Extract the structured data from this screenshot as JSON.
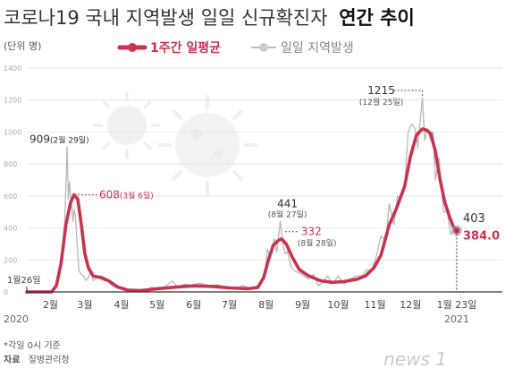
{
  "title": {
    "normal": "코로나19 국내 지역발생 일일 신규확진자",
    "bold": "연간 추이"
  },
  "unit_label": "(단위 명)",
  "legend": {
    "avg": "1주간 일평균",
    "daily": "일일 지역발생"
  },
  "footer": {
    "note": "*각일 0시 기준",
    "source_label": "자료",
    "source": "질병관리청"
  },
  "logo_text": "news 1",
  "colors": {
    "avg": "#c8344f",
    "daily": "#b8b8b8",
    "grid": "#dddddd",
    "axis": "#333333"
  },
  "chart_data": {
    "type": "line",
    "title": "코로나19 국내 지역발생 일일 신규확진자 연간 추이",
    "unit": "명",
    "ylim": [
      0,
      1400
    ],
    "yticks": [
      0,
      200,
      400,
      600,
      800,
      1000,
      1200,
      1400
    ],
    "grid": true,
    "legend_position": "top-center",
    "x_range": [
      "2020-01-26",
      "2021-01-23"
    ],
    "month_ticks": [
      {
        "label": "2월",
        "x": "2020-02-15"
      },
      {
        "label": "3월",
        "x": "2020-03-15"
      },
      {
        "label": "4월",
        "x": "2020-04-15"
      },
      {
        "label": "5월",
        "x": "2020-05-15"
      },
      {
        "label": "6월",
        "x": "2020-06-15"
      },
      {
        "label": "7월",
        "x": "2020-07-15"
      },
      {
        "label": "8월",
        "x": "2020-08-15"
      },
      {
        "label": "9월",
        "x": "2020-09-15"
      },
      {
        "label": "10월",
        "x": "2020-10-15"
      },
      {
        "label": "11월",
        "x": "2020-11-15"
      },
      {
        "label": "12월",
        "x": "2020-12-15"
      },
      {
        "label": "1월 23일",
        "x": "2021-01-23"
      }
    ],
    "year_labels": [
      "2020",
      "2021"
    ],
    "series": [
      {
        "name": "1주간 일평균",
        "points": [
          [
            "2020-01-26",
            0
          ],
          [
            "2020-02-16",
            0
          ],
          [
            "2020-02-20",
            40
          ],
          [
            "2020-02-24",
            180
          ],
          [
            "2020-02-28",
            420
          ],
          [
            "2020-03-03",
            560
          ],
          [
            "2020-03-06",
            608
          ],
          [
            "2020-03-09",
            580
          ],
          [
            "2020-03-12",
            420
          ],
          [
            "2020-03-15",
            240
          ],
          [
            "2020-03-18",
            150
          ],
          [
            "2020-03-22",
            100
          ],
          [
            "2020-03-28",
            90
          ],
          [
            "2020-04-04",
            70
          ],
          [
            "2020-04-12",
            30
          ],
          [
            "2020-04-20",
            12
          ],
          [
            "2020-05-01",
            8
          ],
          [
            "2020-05-15",
            20
          ],
          [
            "2020-05-31",
            30
          ],
          [
            "2020-06-15",
            38
          ],
          [
            "2020-06-30",
            35
          ],
          [
            "2020-07-15",
            25
          ],
          [
            "2020-07-31",
            20
          ],
          [
            "2020-08-08",
            28
          ],
          [
            "2020-08-13",
            90
          ],
          [
            "2020-08-17",
            200
          ],
          [
            "2020-08-21",
            290
          ],
          [
            "2020-08-25",
            320
          ],
          [
            "2020-08-28",
            332
          ],
          [
            "2020-09-01",
            300
          ],
          [
            "2020-09-06",
            220
          ],
          [
            "2020-09-12",
            140
          ],
          [
            "2020-09-20",
            100
          ],
          [
            "2020-09-30",
            70
          ],
          [
            "2020-10-10",
            60
          ],
          [
            "2020-10-20",
            65
          ],
          [
            "2020-10-31",
            80
          ],
          [
            "2020-11-07",
            100
          ],
          [
            "2020-11-14",
            150
          ],
          [
            "2020-11-20",
            230
          ],
          [
            "2020-11-27",
            420
          ],
          [
            "2020-12-03",
            520
          ],
          [
            "2020-12-10",
            660
          ],
          [
            "2020-12-15",
            850
          ],
          [
            "2020-12-20",
            980
          ],
          [
            "2020-12-25",
            1020
          ],
          [
            "2020-12-29",
            1010
          ],
          [
            "2021-01-01",
            990
          ],
          [
            "2021-01-05",
            880
          ],
          [
            "2021-01-09",
            700
          ],
          [
            "2021-01-13",
            560
          ],
          [
            "2021-01-17",
            470
          ],
          [
            "2021-01-20",
            410
          ],
          [
            "2021-01-23",
            384.0
          ]
        ]
      },
      {
        "name": "일일 지역발생",
        "points": [
          [
            "2020-01-26",
            1
          ],
          [
            "2020-02-17",
            1
          ],
          [
            "2020-02-20",
            50
          ],
          [
            "2020-02-22",
            140
          ],
          [
            "2020-02-24",
            230
          ],
          [
            "2020-02-26",
            300
          ],
          [
            "2020-02-27",
            440
          ],
          [
            "2020-02-29",
            909
          ],
          [
            "2020-03-01",
            580
          ],
          [
            "2020-03-02",
            690
          ],
          [
            "2020-03-03",
            600
          ],
          [
            "2020-03-04",
            520
          ],
          [
            "2020-03-05",
            440
          ],
          [
            "2020-03-06",
            518
          ],
          [
            "2020-03-07",
            480
          ],
          [
            "2020-03-08",
            360
          ],
          [
            "2020-03-10",
            130
          ],
          [
            "2020-03-12",
            110
          ],
          [
            "2020-03-14",
            100
          ],
          [
            "2020-03-16",
            70
          ],
          [
            "2020-03-18",
            90
          ],
          [
            "2020-03-20",
            140
          ],
          [
            "2020-03-22",
            70
          ],
          [
            "2020-03-24",
            80
          ],
          [
            "2020-03-26",
            95
          ],
          [
            "2020-03-29",
            100
          ],
          [
            "2020-04-02",
            85
          ],
          [
            "2020-04-06",
            45
          ],
          [
            "2020-04-10",
            25
          ],
          [
            "2020-04-15",
            20
          ],
          [
            "2020-04-20",
            10
          ],
          [
            "2020-04-25",
            8
          ],
          [
            "2020-05-01",
            6
          ],
          [
            "2020-05-08",
            12
          ],
          [
            "2020-05-10",
            30
          ],
          [
            "2020-05-15",
            18
          ],
          [
            "2020-05-20",
            25
          ],
          [
            "2020-05-28",
            70
          ],
          [
            "2020-06-01",
            30
          ],
          [
            "2020-06-08",
            50
          ],
          [
            "2020-06-12",
            40
          ],
          [
            "2020-06-20",
            55
          ],
          [
            "2020-06-28",
            40
          ],
          [
            "2020-07-05",
            45
          ],
          [
            "2020-07-12",
            30
          ],
          [
            "2020-07-20",
            20
          ],
          [
            "2020-07-26",
            40
          ],
          [
            "2020-08-01",
            25
          ],
          [
            "2020-08-06",
            30
          ],
          [
            "2020-08-10",
            50
          ],
          [
            "2020-08-14",
            103
          ],
          [
            "2020-08-16",
            267
          ],
          [
            "2020-08-18",
            235
          ],
          [
            "2020-08-20",
            276
          ],
          [
            "2020-08-22",
            332
          ],
          [
            "2020-08-24",
            250
          ],
          [
            "2020-08-27",
            441
          ],
          [
            "2020-08-29",
            308
          ],
          [
            "2020-08-31",
            238
          ],
          [
            "2020-09-02",
            253
          ],
          [
            "2020-09-05",
            160
          ],
          [
            "2020-09-08",
            130
          ],
          [
            "2020-09-12",
            120
          ],
          [
            "2020-09-16",
            100
          ],
          [
            "2020-09-20",
            80
          ],
          [
            "2020-09-24",
            110
          ],
          [
            "2020-09-28",
            40
          ],
          [
            "2020-10-02",
            60
          ],
          [
            "2020-10-06",
            100
          ],
          [
            "2020-10-10",
            50
          ],
          [
            "2020-10-15",
            100
          ],
          [
            "2020-10-20",
            50
          ],
          [
            "2020-10-25",
            80
          ],
          [
            "2020-10-30",
            100
          ],
          [
            "2020-11-04",
            100
          ],
          [
            "2020-11-08",
            140
          ],
          [
            "2020-11-12",
            130
          ],
          [
            "2020-11-16",
            220
          ],
          [
            "2020-11-20",
            350
          ],
          [
            "2020-11-24",
            320
          ],
          [
            "2020-11-27",
            550
          ],
          [
            "2020-12-01",
            420
          ],
          [
            "2020-12-04",
            600
          ],
          [
            "2020-12-07",
            580
          ],
          [
            "2020-12-10",
            670
          ],
          [
            "2020-12-13",
            1000
          ],
          [
            "2020-12-16",
            1050
          ],
          [
            "2020-12-19",
            1020
          ],
          [
            "2020-12-21",
            900
          ],
          [
            "2020-12-23",
            1060
          ],
          [
            "2020-12-25",
            1215
          ],
          [
            "2020-12-27",
            950
          ],
          [
            "2020-12-29",
            1020
          ],
          [
            "2021-01-01",
            950
          ],
          [
            "2021-01-03",
            1000
          ],
          [
            "2021-01-05",
            700
          ],
          [
            "2021-01-08",
            840
          ],
          [
            "2021-01-10",
            640
          ],
          [
            "2021-01-12",
            500
          ],
          [
            "2021-01-15",
            500
          ],
          [
            "2021-01-18",
            360
          ],
          [
            "2021-01-20",
            380
          ],
          [
            "2021-01-23",
            403
          ]
        ]
      }
    ],
    "annotations": [
      {
        "series": "일일 지역발생",
        "x": "2020-02-29",
        "value": "909",
        "date_label": "(2월 29일)"
      },
      {
        "series": "1주간 일평균",
        "x": "2020-03-06",
        "value": "608",
        "date_label": "(3월 6일)"
      },
      {
        "series": "일일 지역발생",
        "x": "2020-08-27",
        "value": "441",
        "date_label": "(8월 27일)"
      },
      {
        "series": "1주간 일평균",
        "x": "2020-08-28",
        "value": "332",
        "date_label": "(8월 28일)"
      },
      {
        "series": "일일 지역발생",
        "x": "2020-12-25",
        "value": "1215",
        "date_label": "(12월 25일)"
      },
      {
        "series": "일일 지역발생",
        "x": "2021-01-23",
        "value": "403",
        "date_label": ""
      },
      {
        "series": "1주간 일평균",
        "x": "2021-01-23",
        "value": "384.0",
        "date_label": ""
      }
    ],
    "start_label": "1월26일"
  }
}
